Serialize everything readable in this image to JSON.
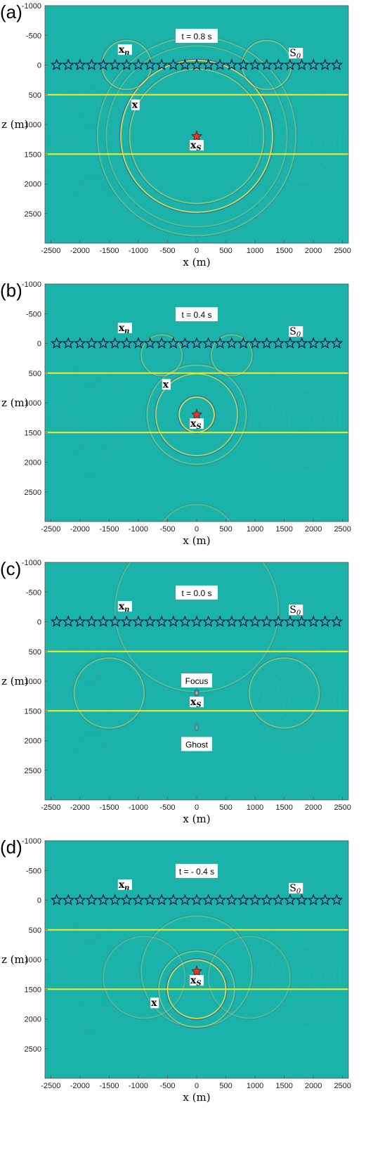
{
  "chart_data": [
    {
      "type": "heatmap",
      "panel_label": "(a)",
      "time_label": "t = 0.8 s",
      "xlabel": "x (m)",
      "ylabel": "z (m)",
      "xlim": [
        -2600,
        2600
      ],
      "ylim": [
        3000,
        -1000
      ],
      "x_ticks": [
        -2500,
        -2000,
        -1500,
        -1000,
        -500,
        0,
        500,
        1000,
        1500,
        2000,
        2500
      ],
      "y_ticks": [
        -1000,
        -500,
        0,
        500,
        1000,
        1500,
        2000,
        2500
      ],
      "interfaces_z": [
        500,
        1500
      ],
      "receiver_array": {
        "z": 0,
        "x": [
          -2400,
          -2200,
          -2000,
          -1800,
          -1600,
          -1400,
          -1200,
          -1000,
          -800,
          -600,
          -400,
          -200,
          0,
          200,
          400,
          600,
          800,
          1000,
          1200,
          1400,
          1600,
          1800,
          2000,
          2200,
          2400
        ]
      },
      "source": {
        "x": 0,
        "z": 1200
      },
      "labels": [
        {
          "text": "x",
          "sub": "n",
          "x": -1230,
          "z": -230
        },
        {
          "text": "S",
          "sub": "0",
          "x": 1700,
          "z": -170
        },
        {
          "text": "x",
          "sub": "",
          "x": -1050,
          "z": 700
        },
        {
          "text": "x",
          "sub": "S",
          "x": 0,
          "z": 1380
        }
      ],
      "wavefronts": [
        {
          "cx": 0,
          "cz": 1200,
          "r": 1300,
          "strength": 0.9
        },
        {
          "cx": 0,
          "cz": 1200,
          "r": 1150,
          "strength": 0.5
        },
        {
          "cx": 0,
          "cz": 1200,
          "r": 1700,
          "strength": 0.35
        },
        {
          "cx": -1200,
          "cz": 0,
          "r": 420,
          "strength": 0.5
        },
        {
          "cx": 1200,
          "cz": 0,
          "r": 420,
          "strength": 0.5
        },
        {
          "cx": 0,
          "cz": 1200,
          "r": 1550,
          "strength": 0.3
        }
      ],
      "focus_blobs": []
    },
    {
      "type": "heatmap",
      "panel_label": "(b)",
      "time_label": "t = 0.4 s",
      "xlabel": "x (m)",
      "ylabel": "z (m)",
      "xlim": [
        -2600,
        2600
      ],
      "ylim": [
        3000,
        -1000
      ],
      "x_ticks": [
        -2500,
        -2000,
        -1500,
        -1000,
        -500,
        0,
        500,
        1000,
        1500,
        2000,
        2500
      ],
      "y_ticks": [
        -1000,
        -500,
        0,
        500,
        1000,
        1500,
        2000,
        2500
      ],
      "interfaces_z": [
        500,
        1500
      ],
      "receiver_array": {
        "z": 0,
        "x": [
          -2400,
          -2200,
          -2000,
          -1800,
          -1600,
          -1400,
          -1200,
          -1000,
          -800,
          -600,
          -400,
          -200,
          0,
          200,
          400,
          600,
          800,
          1000,
          1200,
          1400,
          1600,
          1800,
          2000,
          2200,
          2400
        ]
      },
      "source": {
        "x": 0,
        "z": 1200
      },
      "labels": [
        {
          "text": "x",
          "sub": "n",
          "x": -1230,
          "z": -230
        },
        {
          "text": "S",
          "sub": "0",
          "x": 1700,
          "z": -170
        },
        {
          "text": "x",
          "sub": "",
          "x": -520,
          "z": 720
        },
        {
          "text": "x",
          "sub": "S",
          "x": 0,
          "z": 1380
        }
      ],
      "wavefronts": [
        {
          "cx": 0,
          "cz": 1200,
          "r": 300,
          "strength": 0.95
        },
        {
          "cx": 0,
          "cz": 1200,
          "r": 700,
          "strength": 0.7
        },
        {
          "cx": 0,
          "cz": 1200,
          "r": 850,
          "strength": 0.4
        },
        {
          "cx": 0,
          "cz": 3400,
          "r": 700,
          "strength": 0.3
        },
        {
          "cx": -600,
          "cz": 200,
          "r": 350,
          "strength": 0.4
        },
        {
          "cx": 600,
          "cz": 200,
          "r": 350,
          "strength": 0.4
        }
      ],
      "focus_blobs": []
    },
    {
      "type": "heatmap",
      "panel_label": "(c)",
      "time_label": "t = 0.0 s",
      "xlabel": "x (m)",
      "ylabel": "z (m)",
      "xlim": [
        -2600,
        2600
      ],
      "ylim": [
        3000,
        -1000
      ],
      "x_ticks": [
        -2500,
        -2000,
        -1500,
        -1000,
        -500,
        0,
        500,
        1000,
        1500,
        2000,
        2500
      ],
      "y_ticks": [
        -1000,
        -500,
        0,
        500,
        1000,
        1500,
        2000,
        2500
      ],
      "interfaces_z": [
        500,
        1500
      ],
      "receiver_array": {
        "z": 0,
        "x": [
          -2400,
          -2200,
          -2000,
          -1800,
          -1600,
          -1400,
          -1200,
          -1000,
          -800,
          -600,
          -400,
          -200,
          0,
          200,
          400,
          600,
          800,
          1000,
          1200,
          1400,
          1600,
          1800,
          2000,
          2200,
          2400
        ]
      },
      "source": null,
      "labels": [
        {
          "text": "x",
          "sub": "n",
          "x": -1230,
          "z": -230
        },
        {
          "text": "S",
          "sub": "0",
          "x": 1700,
          "z": -170
        },
        {
          "text": "x",
          "sub": "S",
          "x": 0,
          "z": 1380
        }
      ],
      "boxes": [
        {
          "text": "Focus",
          "x": 0,
          "z": 1000
        },
        {
          "text": "Ghost",
          "x": 0,
          "z": 2070
        }
      ],
      "wavefronts": [
        {
          "cx": -1500,
          "cz": 1200,
          "r": 600,
          "strength": 0.45
        },
        {
          "cx": 1500,
          "cz": 1200,
          "r": 600,
          "strength": 0.45
        },
        {
          "cx": 0,
          "cz": -200,
          "r": 1400,
          "strength": 0.3
        }
      ],
      "focus_blobs": [
        {
          "x": 0,
          "z": 1200,
          "strength": 1.0
        },
        {
          "x": 0,
          "z": 1780,
          "strength": 0.6
        }
      ]
    },
    {
      "type": "heatmap",
      "panel_label": "(d)",
      "time_label": "t = - 0.4 s",
      "xlabel": "x (m)",
      "ylabel": "z (m)",
      "xlim": [
        -2600,
        2600
      ],
      "ylim": [
        3000,
        -1000
      ],
      "x_ticks": [
        -2500,
        -2000,
        -1500,
        -1000,
        -500,
        0,
        500,
        1000,
        1500,
        2000,
        2500
      ],
      "y_ticks": [
        -1000,
        -500,
        0,
        500,
        1000,
        1500,
        2000,
        2500
      ],
      "interfaces_z": [
        500,
        1500
      ],
      "receiver_array": {
        "z": 0,
        "x": [
          -2400,
          -2200,
          -2000,
          -1800,
          -1600,
          -1400,
          -1200,
          -1000,
          -800,
          -600,
          -400,
          -200,
          0,
          200,
          400,
          600,
          800,
          1000,
          1200,
          1400,
          1600,
          1800,
          2000,
          2200,
          2400
        ]
      },
      "source": {
        "x": 0,
        "z": 1200
      },
      "labels": [
        {
          "text": "x",
          "sub": "n",
          "x": -1230,
          "z": -230
        },
        {
          "text": "S",
          "sub": "0",
          "x": 1700,
          "z": -170
        },
        {
          "text": "x",
          "sub": "",
          "x": -720,
          "z": 1760
        },
        {
          "text": "x",
          "sub": "S",
          "x": 0,
          "z": 1380
        }
      ],
      "wavefronts": [
        {
          "cx": 0,
          "cz": 1500,
          "r": 500,
          "strength": 0.9
        },
        {
          "cx": 0,
          "cz": 1500,
          "r": 650,
          "strength": 0.5
        },
        {
          "cx": 0,
          "cz": 1200,
          "r": 950,
          "strength": 0.3
        },
        {
          "cx": -900,
          "cz": 1300,
          "r": 700,
          "strength": 0.25
        },
        {
          "cx": 900,
          "cz": 1300,
          "r": 700,
          "strength": 0.25
        }
      ],
      "focus_blobs": []
    }
  ],
  "colors": {
    "background": "#1bb3a9",
    "interface": "#f0ee2a",
    "wave_light": "#f2e04a",
    "wave_dark": "#3a5b9c",
    "star_fill": "#22b2b8",
    "star_stroke": "#1a1a3a",
    "source_star": "#e8352a"
  }
}
